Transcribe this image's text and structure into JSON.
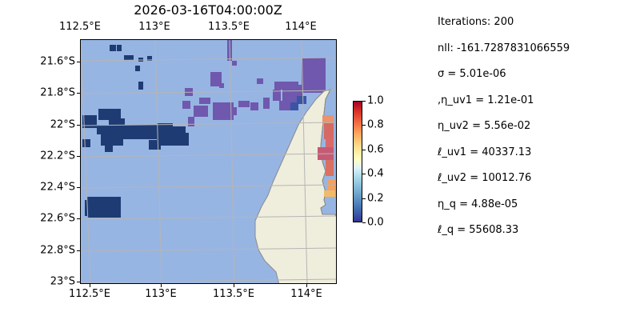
{
  "title": "2026-03-16T04:00:00Z",
  "map": {
    "lon_labels": [
      "112.5°E",
      "113°E",
      "113.5°E",
      "114°E"
    ],
    "lat_labels": [
      "21.6°S",
      "21.8°S",
      "22°S",
      "22.2°S",
      "22.4°S",
      "22.6°S",
      "22.8°S",
      "23°S"
    ],
    "extent": {
      "lon_min": 112.5,
      "lon_max": 114.2,
      "lat_min": -23.0,
      "lat_max": -21.45
    },
    "colors": {
      "ocean": "#97b5e3",
      "land": "#efeddc",
      "coast": "#8a8a8a",
      "grid": "#b5b5b5"
    }
  },
  "colorbar": {
    "ticks": [
      "1.0",
      "0.8",
      "0.6",
      "0.4",
      "0.2",
      "0.0"
    ],
    "range": [
      0.0,
      1.0
    ],
    "colormap": "RdYlBu_r"
  },
  "stats": [
    "Iterations: 200",
    "nll: -161.7287831066559",
    "σ = 5.01e-06",
    ",η_uv1 = 1.21e-01",
    "η_uv2 = 5.56e-02",
    "ℓ_uv1 = 40337.13",
    "ℓ_uv2 = 10012.76",
    "η_q = 4.88e-05",
    "ℓ_q = 55608.33"
  ]
}
